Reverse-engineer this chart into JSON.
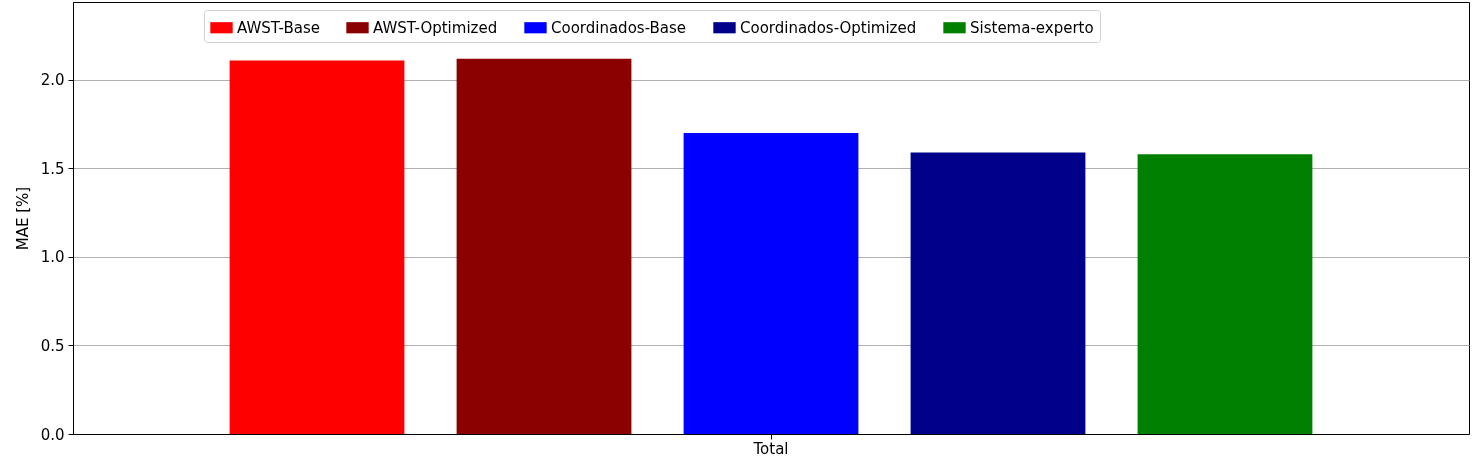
{
  "chart_data": {
    "type": "bar",
    "ylabel": "MAE [%]",
    "categories": [
      "Total"
    ],
    "series": [
      {
        "name": "AWST-Base",
        "color": "#ff0000",
        "values": [
          2.11
        ]
      },
      {
        "name": "AWST-Optimized",
        "color": "#8b0000",
        "values": [
          2.12
        ]
      },
      {
        "name": "Coordinados-Base",
        "color": "#0000ff",
        "values": [
          1.7
        ]
      },
      {
        "name": "Coordinados-Optimized",
        "color": "#00008b",
        "values": [
          1.59
        ]
      },
      {
        "name": "Sistema-experto",
        "color": "#008000",
        "values": [
          1.58
        ]
      }
    ],
    "ylim": [
      0,
      2.44
    ],
    "yticks": [
      {
        "value": 0,
        "label": "0.0"
      },
      0.5,
      {
        "value": 1,
        "label": "1.0"
      },
      1.5,
      {
        "value": 2,
        "label": "2.0"
      }
    ],
    "grid": "y",
    "legend": "top"
  }
}
